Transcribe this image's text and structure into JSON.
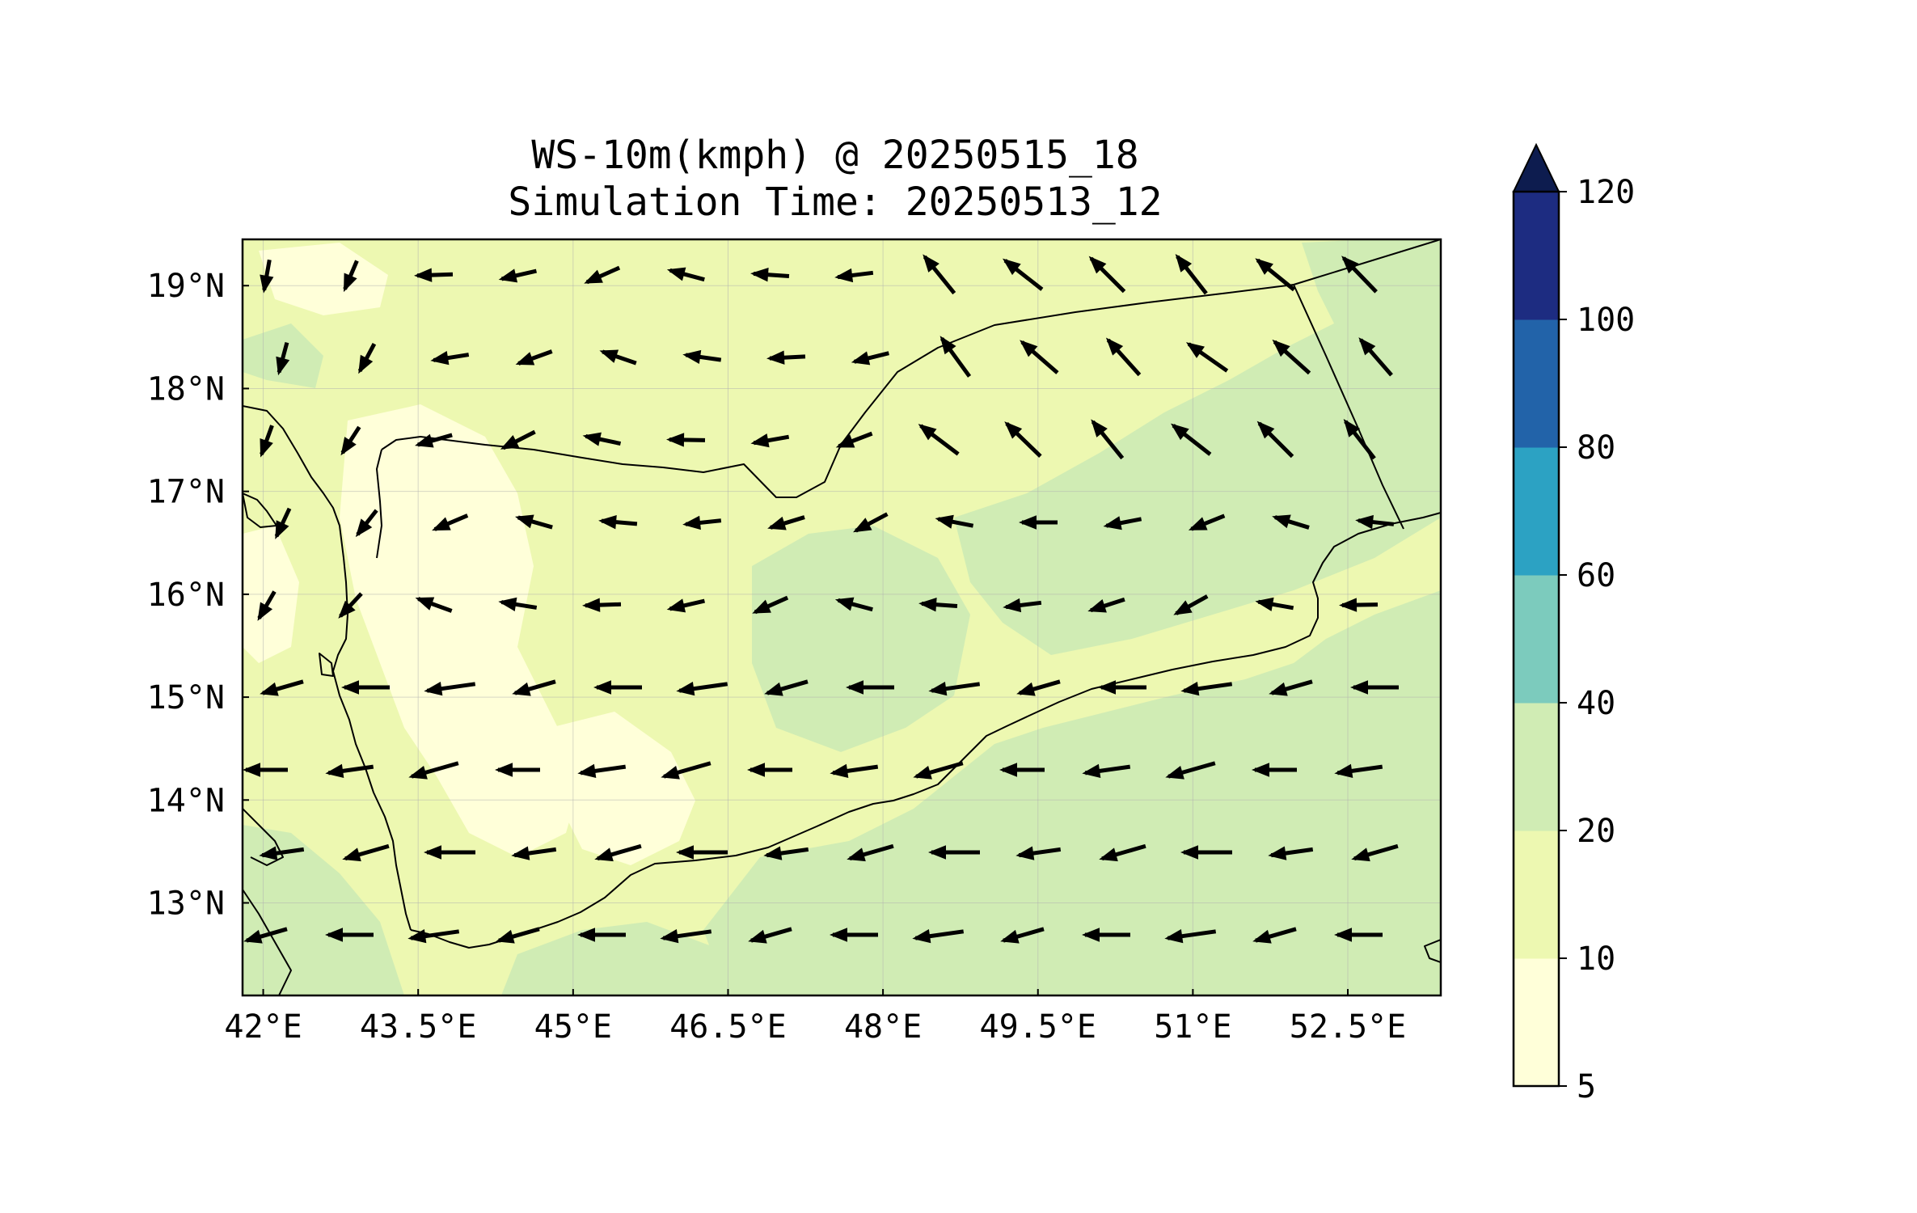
{
  "title": {
    "line1": "WS-10m(kmph) @ 20250515_18",
    "line2": "Simulation Time: 20250513_12"
  },
  "map": {
    "extent": {
      "lon": [
        41.8,
        53.4
      ],
      "lat": [
        12.1,
        19.45
      ]
    },
    "x_ticks": [
      {
        "value": 42.0,
        "label": "42°E"
      },
      {
        "value": 43.5,
        "label": "43.5°E"
      },
      {
        "value": 45.0,
        "label": "45°E"
      },
      {
        "value": 46.5,
        "label": "46.5°E"
      },
      {
        "value": 48.0,
        "label": "48°E"
      },
      {
        "value": 49.5,
        "label": "49.5°E"
      },
      {
        "value": 51.0,
        "label": "51°E"
      },
      {
        "value": 52.5,
        "label": "52.5°E"
      }
    ],
    "y_ticks": [
      {
        "value": 19,
        "label": "19°N"
      },
      {
        "value": 18,
        "label": "18°N"
      },
      {
        "value": 17,
        "label": "17°N"
      },
      {
        "value": 16,
        "label": "16°N"
      },
      {
        "value": 15,
        "label": "15°N"
      },
      {
        "value": 14,
        "label": "14°N"
      },
      {
        "value": 13,
        "label": "13°N"
      }
    ],
    "gridlines": true,
    "coastline_color": "#000000",
    "wind_vector_color": "#000000"
  },
  "colorbar": {
    "bounds": [
      5,
      10,
      20,
      40,
      60,
      80,
      100,
      120
    ],
    "labels": [
      "5",
      "10",
      "20",
      "40",
      "60",
      "80",
      "100",
      "120"
    ],
    "colors": [
      "#ffffd9",
      "#edf8b1",
      "#d0ecb4",
      "#7ccbbd",
      "#2ca2c3",
      "#2263a9",
      "#1d2c81"
    ],
    "extend_color": "#0d1c4f",
    "extend": "max"
  }
}
